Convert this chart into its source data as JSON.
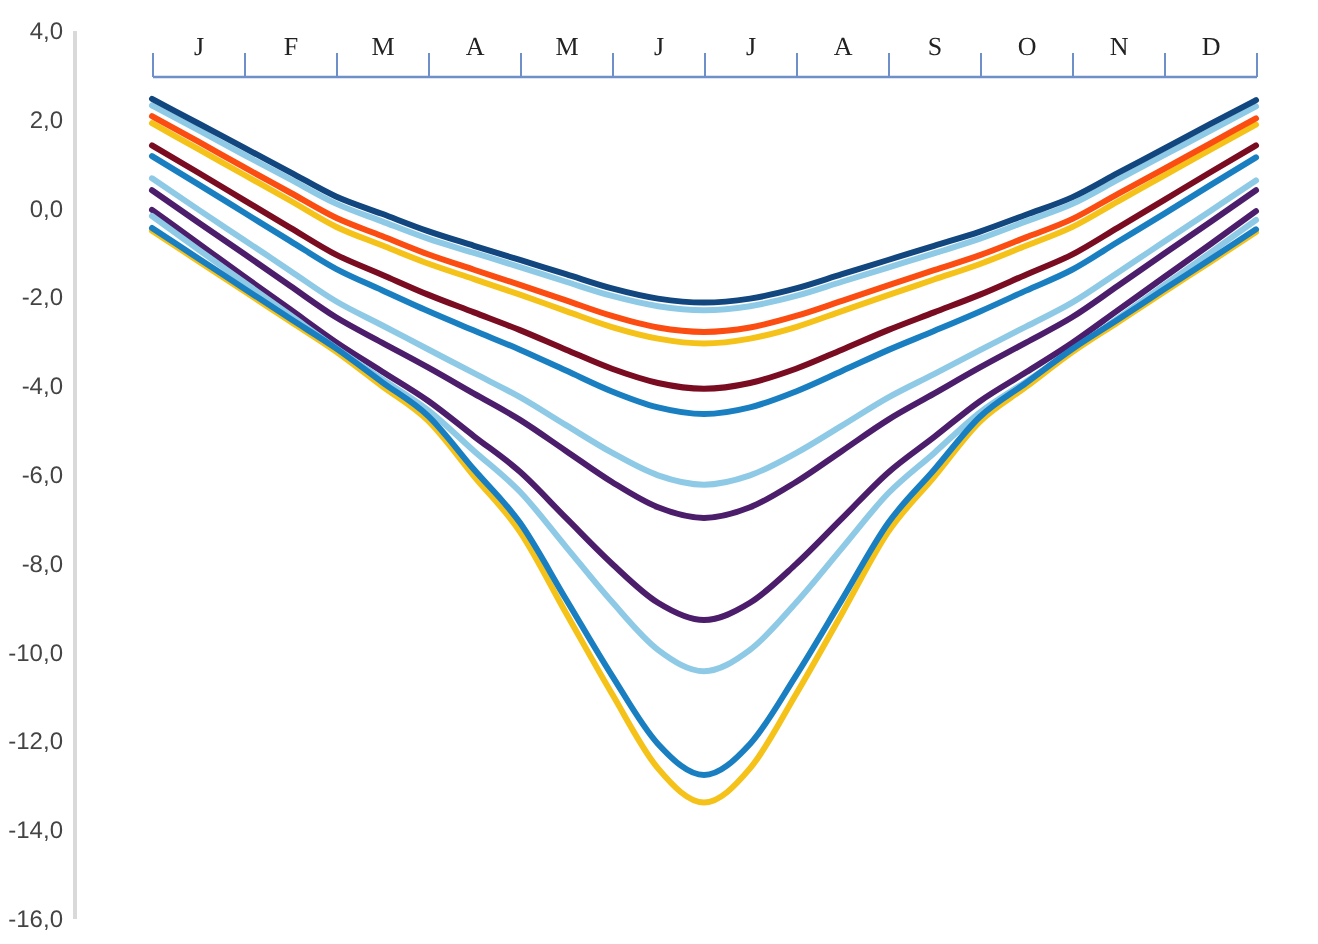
{
  "chart_data": {
    "type": "line",
    "categories": [
      null,
      "J",
      null,
      "F",
      null,
      "M",
      null,
      "A",
      null,
      "M",
      null,
      "J",
      null,
      "J",
      null,
      "A",
      null,
      "S",
      null,
      "O",
      null,
      "N",
      null,
      "D",
      null
    ],
    "ylim": [
      -16,
      4
    ],
    "yticks": [
      {
        "value": 4,
        "label": "4,0"
      },
      {
        "value": 2,
        "label": "2,0"
      },
      {
        "value": 0,
        "label": "0,0"
      },
      {
        "value": -2,
        "label": "-2,0"
      },
      {
        "value": -4,
        "label": "-4,0"
      },
      {
        "value": -6,
        "label": "-6,0"
      },
      {
        "value": -8,
        "label": "-8,0"
      },
      {
        "value": -10,
        "label": "-10,0"
      },
      {
        "value": -12,
        "label": "-12,0"
      },
      {
        "value": -14,
        "label": "-14,0"
      },
      {
        "value": -16,
        "label": "-16,0"
      }
    ],
    "series": [
      {
        "color": "#8ecae6",
        "values": [
          2.3,
          1.75,
          1.19,
          0.64,
          0.09,
          -0.31,
          -0.7,
          -1.02,
          -1.34,
          -1.67,
          -1.99,
          -2.22,
          -2.31,
          -2.22,
          -1.99,
          -1.67,
          -1.35,
          -1.03,
          -0.7,
          -0.31,
          0.08,
          0.63,
          1.18,
          1.73,
          2.28
        ]
      },
      {
        "color": "#12467e",
        "values": [
          2.45,
          1.9,
          1.35,
          0.8,
          0.25,
          -0.14,
          -0.53,
          -0.86,
          -1.18,
          -1.5,
          -1.82,
          -2.05,
          -2.14,
          -2.05,
          -1.82,
          -1.5,
          -1.18,
          -0.86,
          -0.54,
          -0.16,
          0.23,
          0.78,
          1.33,
          1.88,
          2.42
        ]
      },
      {
        "color": "#f5c21a",
        "values": [
          1.9,
          1.32,
          0.74,
          0.16,
          -0.43,
          -0.85,
          -1.26,
          -1.61,
          -1.96,
          -2.33,
          -2.69,
          -2.95,
          -3.06,
          -2.95,
          -2.69,
          -2.33,
          -1.97,
          -1.62,
          -1.27,
          -0.86,
          -0.44,
          0.14,
          0.72,
          1.3,
          1.87
        ]
      },
      {
        "color": "#fb4d12",
        "values": [
          2.06,
          1.49,
          0.91,
          0.34,
          -0.23,
          -0.64,
          -1.05,
          -1.4,
          -1.74,
          -2.09,
          -2.44,
          -2.7,
          -2.8,
          -2.7,
          -2.44,
          -2.1,
          -1.75,
          -1.41,
          -1.07,
          -0.67,
          -0.26,
          0.31,
          0.87,
          1.44,
          2.01
        ]
      },
      {
        "color": "#7a0c22",
        "values": [
          1.4,
          0.79,
          0.17,
          -0.45,
          -1.06,
          -1.51,
          -1.96,
          -2.36,
          -2.76,
          -3.2,
          -3.63,
          -3.95,
          -4.08,
          -3.95,
          -3.63,
          -3.2,
          -2.76,
          -2.36,
          -1.96,
          -1.51,
          -1.06,
          -0.45,
          0.17,
          0.79,
          1.4
        ]
      },
      {
        "color": "#1a7fc1",
        "values": [
          1.16,
          0.53,
          -0.11,
          -0.75,
          -1.38,
          -1.86,
          -2.33,
          -2.77,
          -3.2,
          -3.67,
          -4.14,
          -4.5,
          -4.65,
          -4.5,
          -4.14,
          -3.68,
          -3.21,
          -2.78,
          -2.34,
          -1.87,
          -1.4,
          -0.77,
          -0.14,
          0.5,
          1.13
        ]
      },
      {
        "color": "#8ecae6",
        "values": [
          0.66,
          -0.04,
          -0.73,
          -1.42,
          -2.11,
          -2.65,
          -3.19,
          -3.73,
          -4.27,
          -4.9,
          -5.52,
          -6.03,
          -6.24,
          -6.03,
          -5.53,
          -4.91,
          -4.28,
          -3.75,
          -3.21,
          -2.68,
          -2.14,
          -1.46,
          -0.77,
          -0.08,
          0.61
        ]
      },
      {
        "color": "#4b1d6b",
        "values": [
          0.39,
          -0.33,
          -1.04,
          -1.76,
          -2.47,
          -3.04,
          -3.6,
          -4.19,
          -4.78,
          -5.48,
          -6.18,
          -6.75,
          -6.99,
          -6.75,
          -6.18,
          -5.48,
          -4.78,
          -4.19,
          -3.6,
          -3.04,
          -2.47,
          -1.76,
          -1.04,
          -0.33,
          0.39
        ]
      },
      {
        "color": "#4b1d6b",
        "values": [
          -0.05,
          -0.8,
          -1.55,
          -2.29,
          -3.03,
          -3.69,
          -4.35,
          -5.15,
          -5.95,
          -6.99,
          -8.02,
          -8.9,
          -9.29,
          -8.9,
          -8.03,
          -7.0,
          -5.97,
          -5.17,
          -4.36,
          -3.71,
          -3.05,
          -2.31,
          -1.57,
          -0.83,
          -0.08
        ]
      },
      {
        "color": "#8ecae6",
        "values": [
          -0.19,
          -0.94,
          -1.68,
          -2.42,
          -3.16,
          -3.86,
          -4.56,
          -5.48,
          -6.4,
          -7.64,
          -8.88,
          -9.96,
          -10.44,
          -9.96,
          -8.9,
          -7.67,
          -6.44,
          -5.53,
          -4.61,
          -3.92,
          -3.23,
          -2.49,
          -1.75,
          -1.02,
          -0.28
        ]
      },
      {
        "color": "#f5c21a",
        "values": [
          -0.52,
          -1.2,
          -1.88,
          -2.56,
          -3.24,
          -4.02,
          -4.8,
          -6.05,
          -7.3,
          -9.13,
          -10.95,
          -12.63,
          -13.4,
          -12.63,
          -10.96,
          -9.14,
          -7.31,
          -6.07,
          -4.82,
          -4.04,
          -3.26,
          -2.58,
          -1.9,
          -1.23,
          -0.55
        ]
      },
      {
        "color": "#1a7fc1",
        "values": [
          -0.46,
          -1.14,
          -1.82,
          -2.5,
          -3.17,
          -3.93,
          -4.69,
          -5.9,
          -7.1,
          -8.82,
          -10.54,
          -12.08,
          -12.78,
          -12.08,
          -10.54,
          -8.83,
          -7.11,
          -5.91,
          -4.71,
          -3.95,
          -3.19,
          -2.52,
          -1.84,
          -1.17,
          -0.49
        ]
      }
    ]
  }
}
